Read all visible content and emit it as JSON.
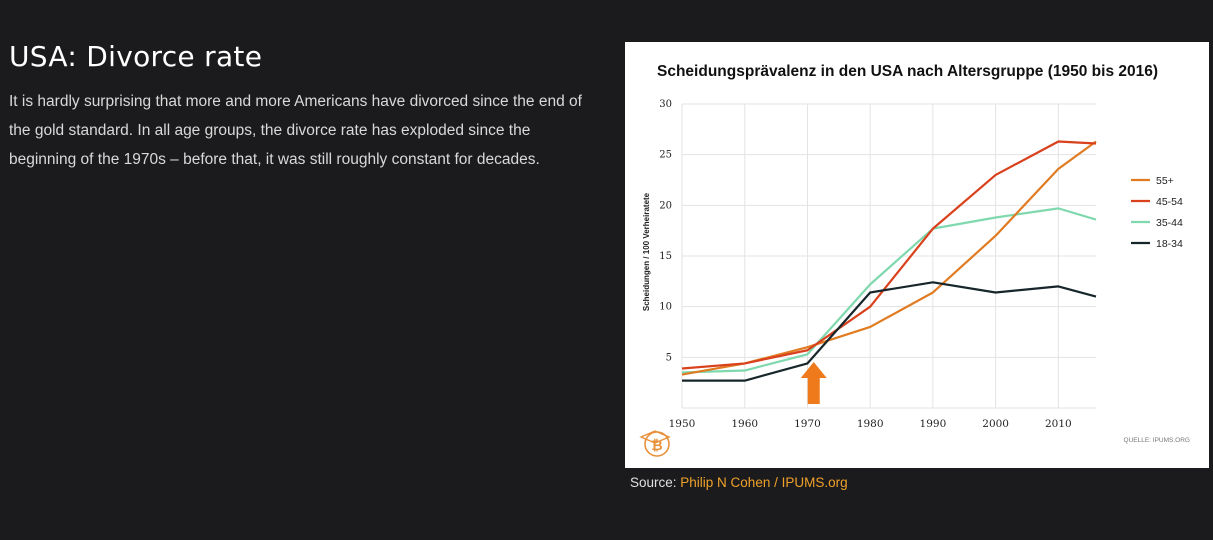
{
  "article": {
    "title": "USA: Divorce rate",
    "body": "It is hardly surprising that more and more Americans have divorced since the end of the gold standard. In all age groups, the divorce rate has exploded since the beginning of the 1970s – before that, it was still roughly constant for decades."
  },
  "caption": {
    "prefix": "Source: ",
    "link_text": "Philip N Cohen / IPUMS.org"
  },
  "colors": {
    "series_55_plus": "#e07b22",
    "series_45_54": "#d8411c",
    "series_35_44": "#7fd8ae",
    "series_18_34": "#17262a",
    "arrow": "#ee7a1c",
    "logo": "#e8913a"
  },
  "chart_data": {
    "type": "line",
    "title": "Scheidungsprävalenz in den USA nach Altersgruppe (1950 bis 2016)",
    "ylabel": "Scheidungen / 100 Verheiratete",
    "xlabel": "",
    "source_note": "QUELLE: IPUMS.ORG",
    "x": [
      1950,
      1960,
      1970,
      1980,
      1990,
      2000,
      2010,
      2016
    ],
    "xticks": [
      "1950",
      "1960",
      "1970",
      "1980",
      "1990",
      "2000",
      "2010"
    ],
    "yticks": [
      "5",
      "10",
      "15",
      "20",
      "25",
      "30"
    ],
    "xlim": [
      1950,
      2016
    ],
    "ylim": [
      0,
      30
    ],
    "grid": true,
    "legend_position": "right",
    "annotation": {
      "type": "arrow",
      "x": 1971
    },
    "series": [
      {
        "name": "55+",
        "values": [
          3.3,
          4.4,
          6.0,
          8.0,
          11.4,
          17.0,
          23.6,
          26.3
        ]
      },
      {
        "name": "45-54",
        "values": [
          3.9,
          4.4,
          5.7,
          10.0,
          17.7,
          23.0,
          26.3,
          26.1
        ]
      },
      {
        "name": "35-44",
        "values": [
          3.5,
          3.7,
          5.3,
          12.2,
          17.7,
          18.8,
          19.7,
          18.6
        ]
      },
      {
        "name": "18-34",
        "values": [
          2.7,
          2.7,
          4.4,
          11.4,
          12.4,
          11.4,
          12.0,
          11.0
        ]
      }
    ]
  }
}
